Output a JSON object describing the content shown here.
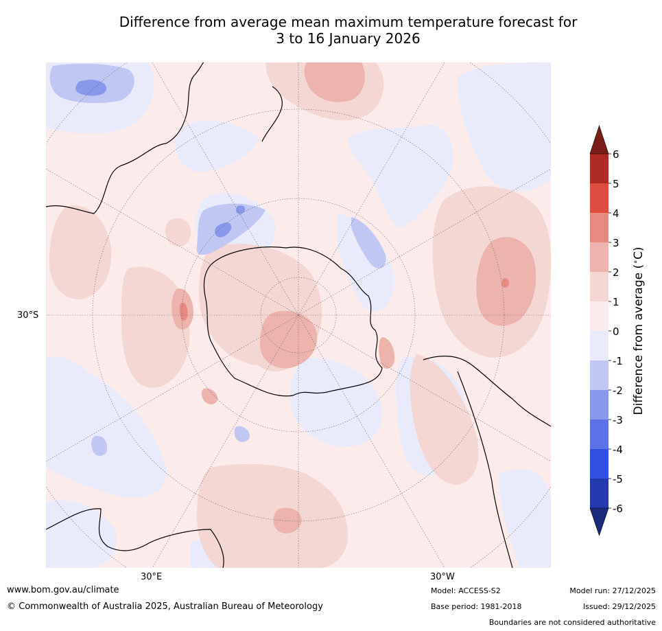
{
  "title": {
    "line1": "Difference from average mean maximum temperature forecast for",
    "line2": "3 to 16 January 2026"
  },
  "map": {
    "projection": "south-polar-stereographic",
    "lat_label": "30°S",
    "lon_labels": {
      "east": "30°E",
      "west": "30°W"
    }
  },
  "colorbar": {
    "label": "Difference from average (°C)",
    "label_prefix": "Difference from average (",
    "label_deg": "∘",
    "label_suffix": "C)",
    "ticks": [
      "6",
      "5",
      "4",
      "3",
      "2",
      "1",
      "0",
      "-1",
      "-2",
      "-3",
      "-4",
      "-5",
      "-6"
    ],
    "bins": [
      {
        "from": 5,
        "to": 6,
        "color": "#ae2b24"
      },
      {
        "from": 4,
        "to": 5,
        "color": "#dc4d3f"
      },
      {
        "from": 3,
        "to": 4,
        "color": "#e98a80"
      },
      {
        "from": 2,
        "to": 3,
        "color": "#ecb4ac"
      },
      {
        "from": 1,
        "to": 2,
        "color": "#f4d6d3"
      },
      {
        "from": 0,
        "to": 1,
        "color": "#fbeceb"
      },
      {
        "from": -1,
        "to": 0,
        "color": "#e9ebfb"
      },
      {
        "from": -2,
        "to": -1,
        "color": "#c0c7f2"
      },
      {
        "from": -3,
        "to": -2,
        "color": "#8899ec"
      },
      {
        "from": -4,
        "to": -3,
        "color": "#5b72e6"
      },
      {
        "from": -5,
        "to": -4,
        "color": "#3050e0"
      },
      {
        "from": -6,
        "to": -5,
        "color": "#2438ad"
      }
    ],
    "top_arrow_color": "#7a1f18",
    "bottom_arrow_color": "#1c2a7c"
  },
  "footer": {
    "website": "www.bom.gov.au/climate",
    "copyright": "© Commonwealth of Australia 2025, Australian Bureau of Meteorology",
    "model": "Model: ACCESS-S2",
    "base_period": "Base period: 1981-2018",
    "model_run": "Model run: 27/12/2025",
    "issued": "Issued: 29/12/2025",
    "disclaimer": "Boundaries are not considered authoritative"
  }
}
